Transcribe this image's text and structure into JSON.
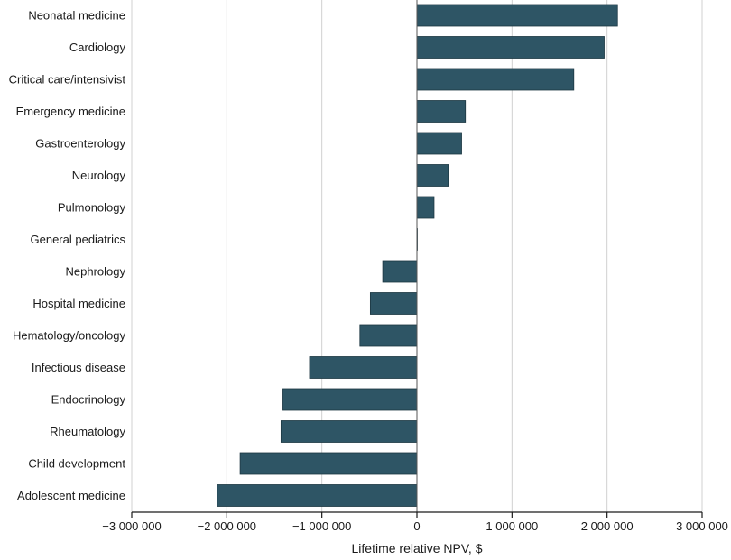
{
  "chart_data": {
    "type": "bar",
    "orientation": "horizontal",
    "xlabel": "Lifetime relative NPV, $",
    "xlim": [
      -3000000,
      3000000
    ],
    "x_ticks": [
      -3000000,
      -2000000,
      -1000000,
      0,
      1000000,
      2000000,
      3000000
    ],
    "x_tick_labels": [
      "−3 000 000",
      "−2 000 000",
      "−1 000 000",
      "0",
      "1 000 000",
      "2 000 000",
      "3 000 000"
    ],
    "grid": "vertical",
    "bar_color": "#2e5565",
    "categories": [
      "Neonatal medicine",
      "Cardiology",
      "Critical care/intensivist",
      "Emergency medicine",
      "Gastroenterology",
      "Neurology",
      "Pulmonology",
      "General pediatrics",
      "Nephrology",
      "Hospital medicine",
      "Hematology/oncology",
      "Infectious disease",
      "Endocrinology",
      "Rheumatology",
      "Child development",
      "Adolescent medicine"
    ],
    "values": [
      2110000,
      1970000,
      1650000,
      510000,
      470000,
      330000,
      180000,
      0,
      -360000,
      -490000,
      -600000,
      -1130000,
      -1410000,
      -1430000,
      -1860000,
      -2100000
    ]
  }
}
